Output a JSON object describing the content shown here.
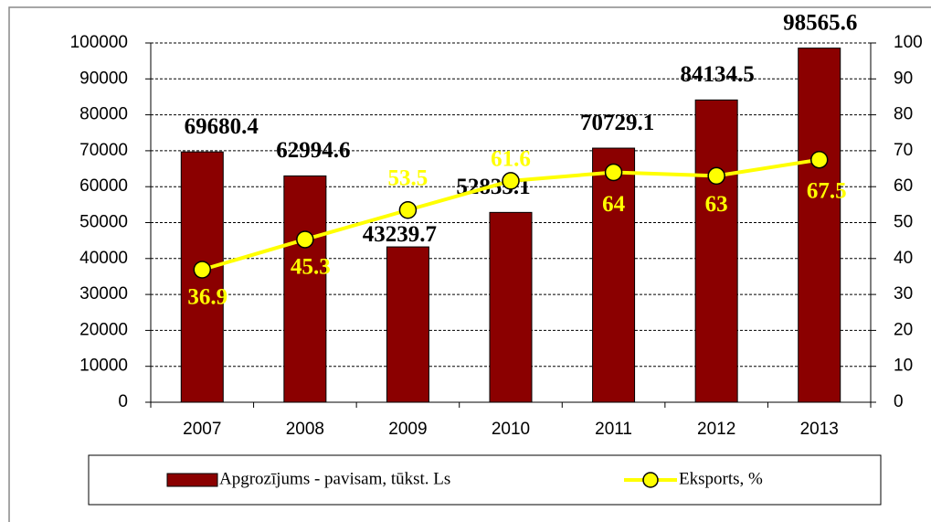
{
  "chart_data": {
    "type": "bar",
    "categories": [
      "2007",
      "2008",
      "2009",
      "2010",
      "2011",
      "2012",
      "2013"
    ],
    "series": [
      {
        "name": "Apgrozījums - pavisam, tūkst. Ls",
        "type": "bar",
        "color": "#8b0000",
        "values": [
          69680.4,
          62994.6,
          43239.7,
          52835.1,
          70729.1,
          84134.5,
          98565.6
        ]
      },
      {
        "name": "Eksports, %",
        "type": "line",
        "axis": "y2",
        "color": "#ffff00",
        "values": [
          36.9,
          45.3,
          53.5,
          61.6,
          64,
          63,
          67.5
        ]
      }
    ],
    "ylim": [
      0,
      100000
    ],
    "yticks": [
      0,
      10000,
      20000,
      30000,
      40000,
      50000,
      60000,
      70000,
      80000,
      90000,
      100000
    ],
    "y2lim": [
      0,
      100
    ],
    "y2ticks": [
      0,
      10,
      20,
      30,
      40,
      50,
      60,
      70,
      80,
      90,
      100
    ],
    "grid": true,
    "legend": "bottom"
  }
}
